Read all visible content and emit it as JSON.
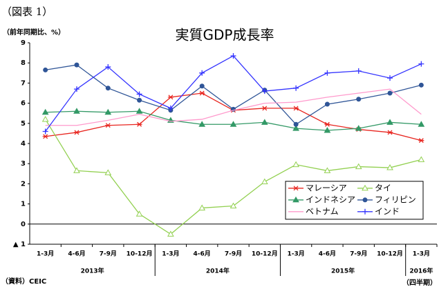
{
  "chart_data": {
    "type": "line",
    "figure_label": "（図表 1）",
    "title": "実質GDP成長率",
    "y_unit_label": "（前年同期比、%）",
    "source": "（資料）CEIC",
    "x_unit_label": "（四半期）",
    "categories": [
      "1-3月",
      "4-6月",
      "7-9月",
      "10-12月",
      "1-3月",
      "4-6月",
      "7-9月",
      "10-12月",
      "1-3月",
      "4-6月",
      "7-9月",
      "10-12月",
      "1-3月"
    ],
    "groups": [
      "2013年",
      "2014年",
      "2015年",
      "2016年"
    ],
    "ylim": [
      -1,
      9
    ],
    "yticks": [
      {
        "value": -1,
        "label": "▲ 1"
      },
      0,
      1,
      2,
      3,
      4,
      5,
      6,
      7,
      8,
      9
    ],
    "legend": "lower right",
    "series": [
      {
        "name": "マレーシア",
        "color": "#e8251f",
        "marker": "star",
        "values": [
          4.35,
          4.55,
          4.9,
          4.95,
          6.3,
          6.5,
          5.65,
          5.75,
          5.75,
          4.95,
          4.7,
          4.55,
          4.15
        ]
      },
      {
        "name": "タイ",
        "color": "#92d050",
        "marker": "open-triangle",
        "values": [
          5.2,
          2.65,
          2.55,
          0.5,
          -0.5,
          0.8,
          0.9,
          2.1,
          2.95,
          2.65,
          2.85,
          2.8,
          3.2
        ]
      },
      {
        "name": "インドネシア",
        "color": "#339966",
        "marker": "triangle",
        "values": [
          5.55,
          5.6,
          5.55,
          5.6,
          5.15,
          4.95,
          4.95,
          5.05,
          4.75,
          4.65,
          4.75,
          5.05,
          4.95
        ]
      },
      {
        "name": "フィリピン",
        "color": "#2f5597",
        "marker": "circle",
        "values": [
          7.65,
          7.9,
          6.75,
          6.15,
          5.65,
          6.85,
          5.7,
          6.65,
          4.95,
          5.95,
          6.2,
          6.5,
          6.9
        ]
      },
      {
        "name": "ベトナム",
        "color": "#ff99cc",
        "marker": "none",
        "values": [
          4.9,
          4.9,
          5.15,
          5.45,
          5.1,
          5.2,
          5.65,
          6.0,
          6.05,
          6.3,
          6.5,
          6.7,
          5.45
        ]
      },
      {
        "name": "インド",
        "color": "#3333ff",
        "marker": "plus",
        "values": [
          4.6,
          6.7,
          7.8,
          6.45,
          5.75,
          7.5,
          8.35,
          6.6,
          6.75,
          7.5,
          7.6,
          7.25,
          7.95
        ]
      }
    ]
  }
}
